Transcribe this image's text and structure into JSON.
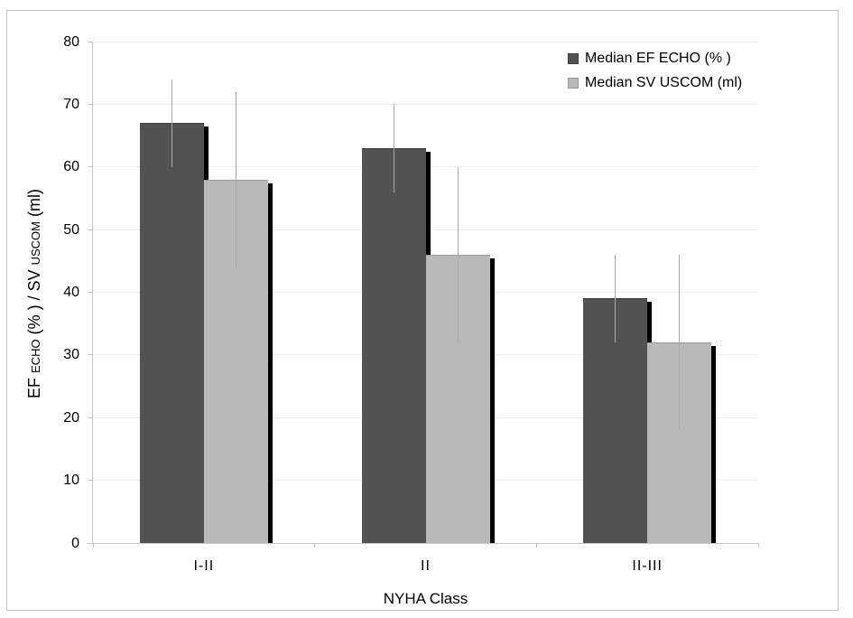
{
  "figure": {
    "background": "#ffffff",
    "border_color": "#c2c2c2"
  },
  "chart_data": {
    "type": "bar",
    "title": "",
    "xlabel": "NYHA Class",
    "ylabel": "EF ECHO (% ) / SV USCOM (ml)",
    "ylabel_parts": [
      {
        "text": "EF ",
        "small": false
      },
      {
        "text": "ECHO",
        "small": true
      },
      {
        "text": " (% ) / SV ",
        "small": false
      },
      {
        "text": "USCOM",
        "small": true
      },
      {
        "text": " (ml)",
        "small": false
      }
    ],
    "categories": [
      "I-II",
      "II",
      "II-III"
    ],
    "series": [
      {
        "name": "Median EF ECHO (% )",
        "color": "#525252",
        "border_color": "#3d3d3d",
        "values": [
          67,
          63,
          39
        ],
        "error_low": [
          60,
          56,
          32
        ],
        "error_high": [
          74,
          70,
          46
        ]
      },
      {
        "name": "Median SV USCOM (ml)",
        "color": "#b9b9b9",
        "border_color": "#9a9a9a",
        "values": [
          58,
          46,
          32
        ],
        "error_low": [
          44,
          32,
          18
        ],
        "error_high": [
          72,
          60,
          46
        ]
      }
    ],
    "ylim": [
      0,
      80
    ],
    "yticks": [
      0,
      10,
      20,
      30,
      40,
      50,
      60,
      70,
      80
    ],
    "grid": "horizontal",
    "legend_position": "top-right-inside",
    "gridline_color": "#ececec",
    "axis_color": "#c6c6c6",
    "error_bar_color": "#a8a8a8",
    "shadow_color": "#000000",
    "text_color": "#000000"
  }
}
